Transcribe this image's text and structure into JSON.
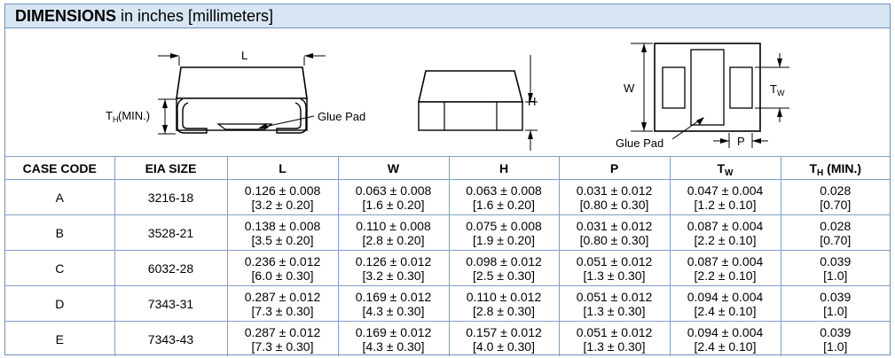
{
  "title": {
    "bold": "DIMENSIONS",
    "rest": " in inches [millimeters]"
  },
  "drawing_labels": {
    "l": "L",
    "th_main": "T",
    "th_sub": "H",
    "th_suffix": " (MIN.)",
    "glue_pad_1": "Glue Pad",
    "h": "H",
    "w": "W",
    "tw_main": "T",
    "tw_sub": "W",
    "glue_pad_2": "Glue Pad",
    "p": "P"
  },
  "table": {
    "headers": {
      "case_code": "CASE CODE",
      "eia_size": "EIA SIZE",
      "l": "L",
      "w": "W",
      "h": "H",
      "p": "P",
      "tw_main": "T",
      "tw_sub": "W",
      "th_main": "T",
      "th_sub": "H",
      "th_suffix": " (MIN.)"
    },
    "rows": [
      {
        "case": "A",
        "eia": "3216-18",
        "l": [
          "0.126 ± 0.008",
          "[3.2 ± 0.20]"
        ],
        "w": [
          "0.063 ± 0.008",
          "[1.6 ± 0.20]"
        ],
        "h": [
          "0.063 ± 0.008",
          "[1.6 ± 0.20]"
        ],
        "p": [
          "0.031 ± 0.012",
          "[0.80 ± 0.30]"
        ],
        "tw": [
          "0.047 ± 0.004",
          "[1.2 ± 0.10]"
        ],
        "th": [
          "0.028",
          "[0.70]"
        ]
      },
      {
        "case": "B",
        "eia": "3528-21",
        "l": [
          "0.138 ± 0.008",
          "[3.5 ± 0.20]"
        ],
        "w": [
          "0.110 ± 0.008",
          "[2.8 ± 0.20]"
        ],
        "h": [
          "0.075 ± 0.008",
          "[1.9 ± 0.20]"
        ],
        "p": [
          "0.031 ± 0.012",
          "[0.80 ± 0.30]"
        ],
        "tw": [
          "0.087 ± 0.004",
          "[2.2 ± 0.10]"
        ],
        "th": [
          "0.028",
          "[0.70]"
        ]
      },
      {
        "case": "C",
        "eia": "6032-28",
        "l": [
          "0.236 ± 0.012",
          "[6.0 ± 0.30]"
        ],
        "w": [
          "0.126 ± 0.012",
          "[3.2 ± 0.30]"
        ],
        "h": [
          "0.098 ± 0.012",
          "[2.5 ± 0.30]"
        ],
        "p": [
          "0.051 ± 0.012",
          "[1.3 ± 0.30]"
        ],
        "tw": [
          "0.087 ± 0.004",
          "[2.2 ± 0.10]"
        ],
        "th": [
          "0.039",
          "[1.0]"
        ]
      },
      {
        "case": "D",
        "eia": "7343-31",
        "l": [
          "0.287 ± 0.012",
          "[7.3 ± 0.30]"
        ],
        "w": [
          "0.169 ± 0.012",
          "[4.3 ± 0.30]"
        ],
        "h": [
          "0.110 ± 0.012",
          "[2.8 ± 0.30]"
        ],
        "p": [
          "0.051 ± 0.012",
          "[1.3 ± 0.30]"
        ],
        "tw": [
          "0.094 ± 0.004",
          "[2.4 ± 0.10]"
        ],
        "th": [
          "0.039",
          "[1.0]"
        ]
      },
      {
        "case": "E",
        "eia": "7343-43",
        "l": [
          "0.287 ± 0.012",
          "[7.3 ± 0.30]"
        ],
        "w": [
          "0.169 ± 0.012",
          "[4.3 ± 0.30]"
        ],
        "h": [
          "0.157 ± 0.012",
          "[4.0 ± 0.30]"
        ],
        "p": [
          "0.051 ± 0.012",
          "[1.3 ± 0.30]"
        ],
        "tw": [
          "0.094 ± 0.004",
          "[2.4 ± 0.10]"
        ],
        "th": [
          "0.039",
          "[1.0]"
        ]
      }
    ]
  }
}
